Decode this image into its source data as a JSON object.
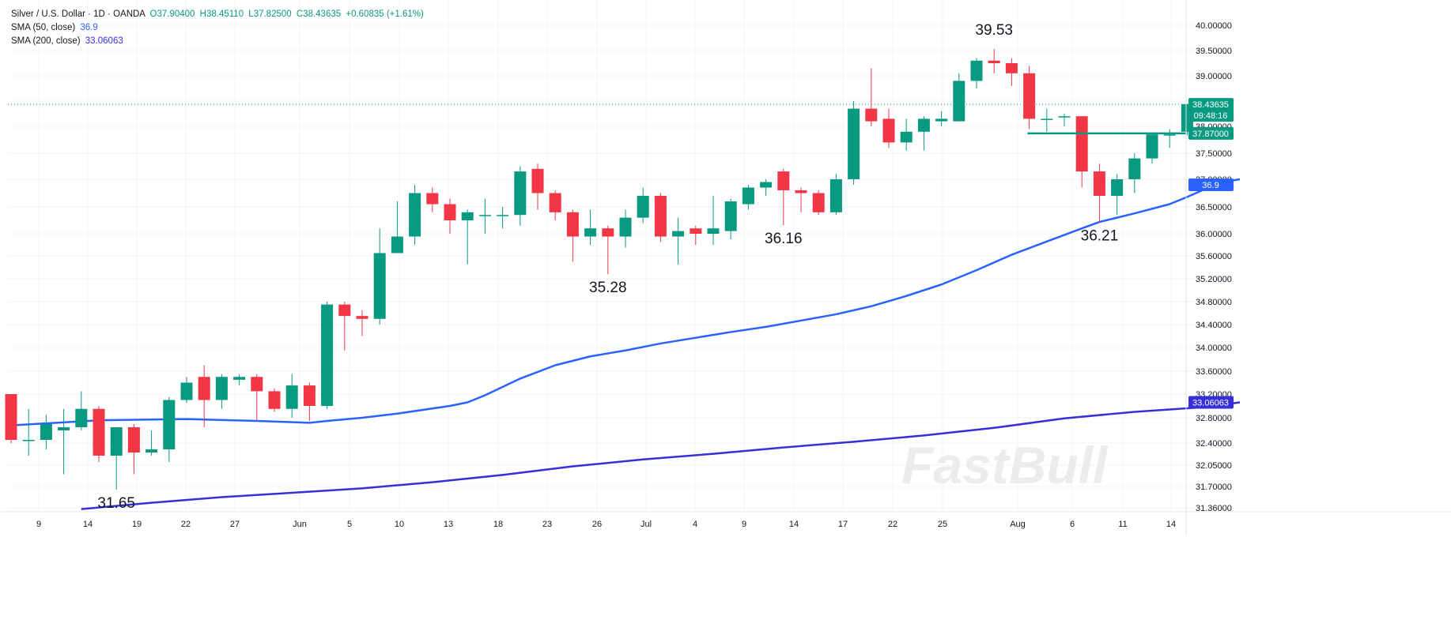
{
  "legend": {
    "symbol_line": "Silver / U.S. Dollar · 1D · OANDA",
    "open": "O37.90400",
    "high": "H38.45110",
    "low": "L37.82500",
    "close": "C38.43635",
    "change": "+0.60835 (+1.61%)",
    "sma50_label": "SMA (50, close)",
    "sma50_value": "36.9",
    "sma200_label": "SMA (200, close)",
    "sma200_value": "33.06063"
  },
  "watermark": "FastBull",
  "colors": {
    "up": "#089981",
    "down": "#f23645",
    "sma50": "#2962ff",
    "sma200": "#3730d8",
    "last_price": "#089981",
    "grid": "#f0f3fa"
  },
  "chart_data": {
    "type": "candlestick",
    "ylim": [
      31.2,
      40.25
    ],
    "y_ticks": [
      "40.00000",
      "39.50000",
      "39.00000",
      "38.50000",
      "38.00000",
      "37.50000",
      "37.00000",
      "36.50000",
      "36.00000",
      "35.60000",
      "35.20000",
      "34.80000",
      "34.40000",
      "34.00000",
      "33.60000",
      "33.20000",
      "32.80000",
      "32.40000",
      "32.05000",
      "31.70000",
      "31.36000"
    ],
    "x_ticks": [
      "9",
      "14",
      "19",
      "22",
      "27",
      "Jun",
      "5",
      "10",
      "13",
      "18",
      "23",
      "26",
      "Jul",
      "4",
      "9",
      "14",
      "17",
      "22",
      "25",
      "Aug",
      "6",
      "11",
      "14"
    ],
    "candles": [
      {
        "o": 33.2,
        "h": 33.2,
        "l": 32.4,
        "c": 32.45
      },
      {
        "o": 32.45,
        "h": 32.95,
        "l": 32.2,
        "c": 32.45
      },
      {
        "o": 32.45,
        "h": 32.85,
        "l": 32.3,
        "c": 32.7
      },
      {
        "o": 32.6,
        "h": 32.95,
        "l": 31.9,
        "c": 32.65
      },
      {
        "o": 32.65,
        "h": 33.25,
        "l": 32.6,
        "c": 32.95
      },
      {
        "o": 32.95,
        "h": 33.0,
        "l": 32.1,
        "c": 32.2
      },
      {
        "o": 32.2,
        "h": 32.65,
        "l": 31.65,
        "c": 32.65
      },
      {
        "o": 32.65,
        "h": 32.7,
        "l": 31.9,
        "c": 32.25
      },
      {
        "o": 32.25,
        "h": 32.6,
        "l": 32.2,
        "c": 32.3
      },
      {
        "o": 32.3,
        "h": 33.15,
        "l": 32.1,
        "c": 33.1
      },
      {
        "o": 33.1,
        "h": 33.5,
        "l": 33.05,
        "c": 33.4
      },
      {
        "o": 33.5,
        "h": 33.7,
        "l": 32.65,
        "c": 33.1
      },
      {
        "o": 33.1,
        "h": 33.55,
        "l": 32.95,
        "c": 33.5
      },
      {
        "o": 33.45,
        "h": 33.55,
        "l": 33.35,
        "c": 33.5
      },
      {
        "o": 33.5,
        "h": 33.55,
        "l": 32.75,
        "c": 33.25
      },
      {
        "o": 33.25,
        "h": 33.3,
        "l": 32.9,
        "c": 32.95
      },
      {
        "o": 32.95,
        "h": 33.55,
        "l": 32.8,
        "c": 33.35
      },
      {
        "o": 33.35,
        "h": 33.4,
        "l": 32.75,
        "c": 33.0
      },
      {
        "o": 33.0,
        "h": 34.8,
        "l": 32.95,
        "c": 34.75
      },
      {
        "o": 34.75,
        "h": 34.8,
        "l": 33.95,
        "c": 34.55
      },
      {
        "o": 34.55,
        "h": 34.65,
        "l": 34.2,
        "c": 34.5
      },
      {
        "o": 34.5,
        "h": 36.1,
        "l": 34.4,
        "c": 35.65
      },
      {
        "o": 35.65,
        "h": 36.6,
        "l": 35.65,
        "c": 35.95
      },
      {
        "o": 35.95,
        "h": 36.9,
        "l": 35.8,
        "c": 36.75
      },
      {
        "o": 36.75,
        "h": 36.85,
        "l": 36.4,
        "c": 36.55
      },
      {
        "o": 36.55,
        "h": 36.65,
        "l": 36.0,
        "c": 36.25
      },
      {
        "o": 36.25,
        "h": 36.45,
        "l": 35.45,
        "c": 36.4
      },
      {
        "o": 36.35,
        "h": 36.65,
        "l": 36.0,
        "c": 36.35
      },
      {
        "o": 36.35,
        "h": 36.5,
        "l": 36.1,
        "c": 36.35
      },
      {
        "o": 36.35,
        "h": 37.25,
        "l": 36.15,
        "c": 37.15
      },
      {
        "o": 37.2,
        "h": 37.3,
        "l": 36.45,
        "c": 36.75
      },
      {
        "o": 36.75,
        "h": 36.8,
        "l": 36.25,
        "c": 36.4
      },
      {
        "o": 36.4,
        "h": 36.45,
        "l": 35.5,
        "c": 35.95
      },
      {
        "o": 35.95,
        "h": 36.45,
        "l": 35.8,
        "c": 36.1
      },
      {
        "o": 36.1,
        "h": 36.15,
        "l": 35.28,
        "c": 35.95
      },
      {
        "o": 35.95,
        "h": 36.45,
        "l": 35.75,
        "c": 36.3
      },
      {
        "o": 36.3,
        "h": 36.85,
        "l": 36.2,
        "c": 36.7
      },
      {
        "o": 36.7,
        "h": 36.75,
        "l": 35.85,
        "c": 35.95
      },
      {
        "o": 35.95,
        "h": 36.3,
        "l": 35.45,
        "c": 36.05
      },
      {
        "o": 36.1,
        "h": 36.15,
        "l": 35.8,
        "c": 36.0
      },
      {
        "o": 36.0,
        "h": 36.7,
        "l": 35.8,
        "c": 36.1
      },
      {
        "o": 36.05,
        "h": 36.65,
        "l": 35.9,
        "c": 36.6
      },
      {
        "o": 36.55,
        "h": 36.9,
        "l": 36.45,
        "c": 36.85
      },
      {
        "o": 36.85,
        "h": 37.0,
        "l": 36.7,
        "c": 36.95
      },
      {
        "o": 37.15,
        "h": 37.2,
        "l": 36.16,
        "c": 36.8
      },
      {
        "o": 36.8,
        "h": 36.85,
        "l": 36.4,
        "c": 36.75
      },
      {
        "o": 36.75,
        "h": 36.8,
        "l": 36.35,
        "c": 36.4
      },
      {
        "o": 36.4,
        "h": 37.1,
        "l": 36.35,
        "c": 37.0
      },
      {
        "o": 37.0,
        "h": 38.5,
        "l": 36.9,
        "c": 38.35
      },
      {
        "o": 38.35,
        "h": 39.15,
        "l": 38.0,
        "c": 38.1
      },
      {
        "o": 38.15,
        "h": 38.35,
        "l": 37.6,
        "c": 37.7
      },
      {
        "o": 37.7,
        "h": 38.15,
        "l": 37.55,
        "c": 37.9
      },
      {
        "o": 37.9,
        "h": 38.2,
        "l": 37.55,
        "c": 38.15
      },
      {
        "o": 38.1,
        "h": 38.3,
        "l": 38.0,
        "c": 38.15
      },
      {
        "o": 38.1,
        "h": 39.05,
        "l": 38.1,
        "c": 38.9
      },
      {
        "o": 38.9,
        "h": 39.35,
        "l": 38.75,
        "c": 39.3
      },
      {
        "o": 39.3,
        "h": 39.53,
        "l": 39.05,
        "c": 39.25
      },
      {
        "o": 39.25,
        "h": 39.35,
        "l": 38.8,
        "c": 39.05
      },
      {
        "o": 39.05,
        "h": 39.2,
        "l": 37.95,
        "c": 38.15
      },
      {
        "o": 38.15,
        "h": 38.35,
        "l": 37.9,
        "c": 38.15
      },
      {
        "o": 38.2,
        "h": 38.25,
        "l": 38.0,
        "c": 38.2
      },
      {
        "o": 38.2,
        "h": 38.2,
        "l": 36.85,
        "c": 37.15
      },
      {
        "o": 37.15,
        "h": 37.3,
        "l": 36.21,
        "c": 36.7
      },
      {
        "o": 36.7,
        "h": 37.1,
        "l": 36.35,
        "c": 37.0
      },
      {
        "o": 37.0,
        "h": 37.5,
        "l": 36.75,
        "c": 37.4
      },
      {
        "o": 37.4,
        "h": 37.85,
        "l": 37.3,
        "c": 37.85
      },
      {
        "o": 37.85,
        "h": 37.95,
        "l": 37.6,
        "c": 37.85
      },
      {
        "o": 37.9,
        "h": 38.45,
        "l": 37.83,
        "c": 38.44
      }
    ],
    "sma50": [
      [
        0,
        32.68
      ],
      [
        5,
        32.76
      ],
      [
        10,
        32.78
      ],
      [
        14,
        32.75
      ],
      [
        17,
        32.72
      ],
      [
        18,
        32.75
      ],
      [
        20,
        32.8
      ],
      [
        22,
        32.87
      ],
      [
        25,
        33.0
      ],
      [
        26,
        33.06
      ],
      [
        27,
        33.18
      ],
      [
        29,
        33.47
      ],
      [
        31,
        33.7
      ],
      [
        33,
        33.85
      ],
      [
        35,
        33.95
      ],
      [
        37,
        34.07
      ],
      [
        39,
        34.17
      ],
      [
        41,
        34.27
      ],
      [
        43,
        34.36
      ],
      [
        45,
        34.47
      ],
      [
        47,
        34.58
      ],
      [
        48,
        34.65
      ],
      [
        49,
        34.72
      ],
      [
        50,
        34.81
      ],
      [
        51,
        34.9
      ],
      [
        53,
        35.1
      ],
      [
        55,
        35.35
      ],
      [
        57,
        35.62
      ],
      [
        59,
        35.86
      ],
      [
        61,
        36.1
      ],
      [
        62,
        36.22
      ],
      [
        63,
        36.3
      ],
      [
        64,
        36.38
      ],
      [
        66,
        36.55
      ],
      [
        67,
        36.68
      ],
      [
        68,
        36.82
      ],
      [
        69,
        36.95
      ],
      [
        70,
        37.0
      ]
    ],
    "sma200": [
      [
        4,
        31.34
      ],
      [
        8,
        31.44
      ],
      [
        12,
        31.53
      ],
      [
        16,
        31.6
      ],
      [
        20,
        31.67
      ],
      [
        24,
        31.77
      ],
      [
        28,
        31.89
      ],
      [
        32,
        32.03
      ],
      [
        36,
        32.14
      ],
      [
        40,
        32.23
      ],
      [
        44,
        32.33
      ],
      [
        48,
        32.42
      ],
      [
        52,
        32.52
      ],
      [
        56,
        32.64
      ],
      [
        60,
        32.79
      ],
      [
        64,
        32.9
      ],
      [
        68,
        32.98
      ],
      [
        70,
        33.06
      ]
    ],
    "last_price": 38.43635,
    "last_price_label": "38.43635",
    "countdown": "09:48:16",
    "level_line": 37.87,
    "level_label": "37.87000",
    "sma50_axis_label": "36.9",
    "sma200_axis_label": "33.06063",
    "annotations": [
      {
        "text": "31.65",
        "i": 6,
        "v": 31.65
      },
      {
        "text": "35.28",
        "i": 34,
        "v": 35.28
      },
      {
        "text": "36.16",
        "i": 44,
        "v": 36.16
      },
      {
        "text": "39.53",
        "i": 56,
        "v": 39.53
      },
      {
        "text": "36.21",
        "i": 62,
        "v": 36.21
      }
    ]
  }
}
